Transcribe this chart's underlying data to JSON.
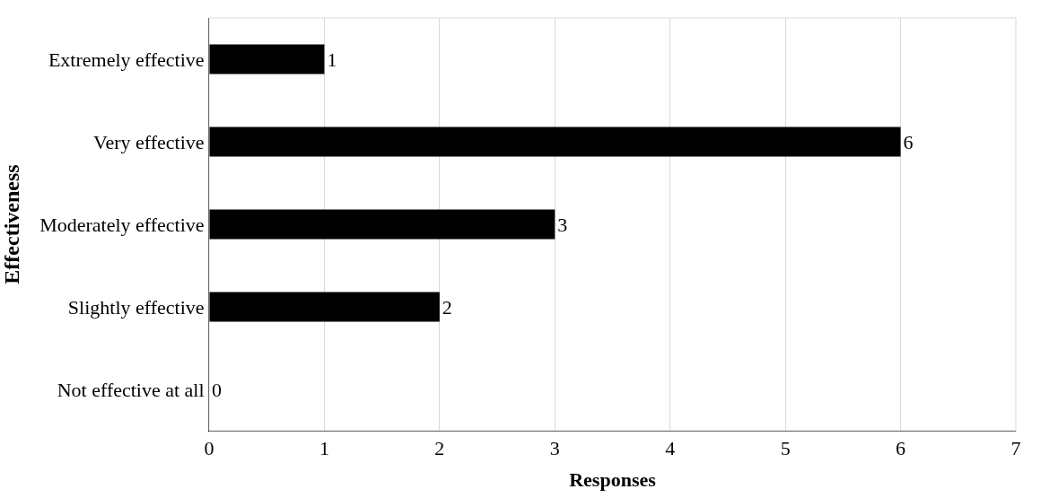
{
  "chart_data": {
    "type": "bar",
    "orientation": "horizontal",
    "xlabel": "Responses",
    "ylabel": "Effectiveness",
    "categories": [
      "Extremely effective",
      "Very effective",
      "Moderately effective",
      "Slightly effective",
      "Not effective at all"
    ],
    "values": [
      1,
      6,
      3,
      2,
      0
    ],
    "color": "#000000",
    "xlim": [
      0,
      7
    ],
    "xticks": [
      0,
      1,
      2,
      3,
      4,
      5,
      6,
      7
    ],
    "grid": "x",
    "data_labels": true
  }
}
